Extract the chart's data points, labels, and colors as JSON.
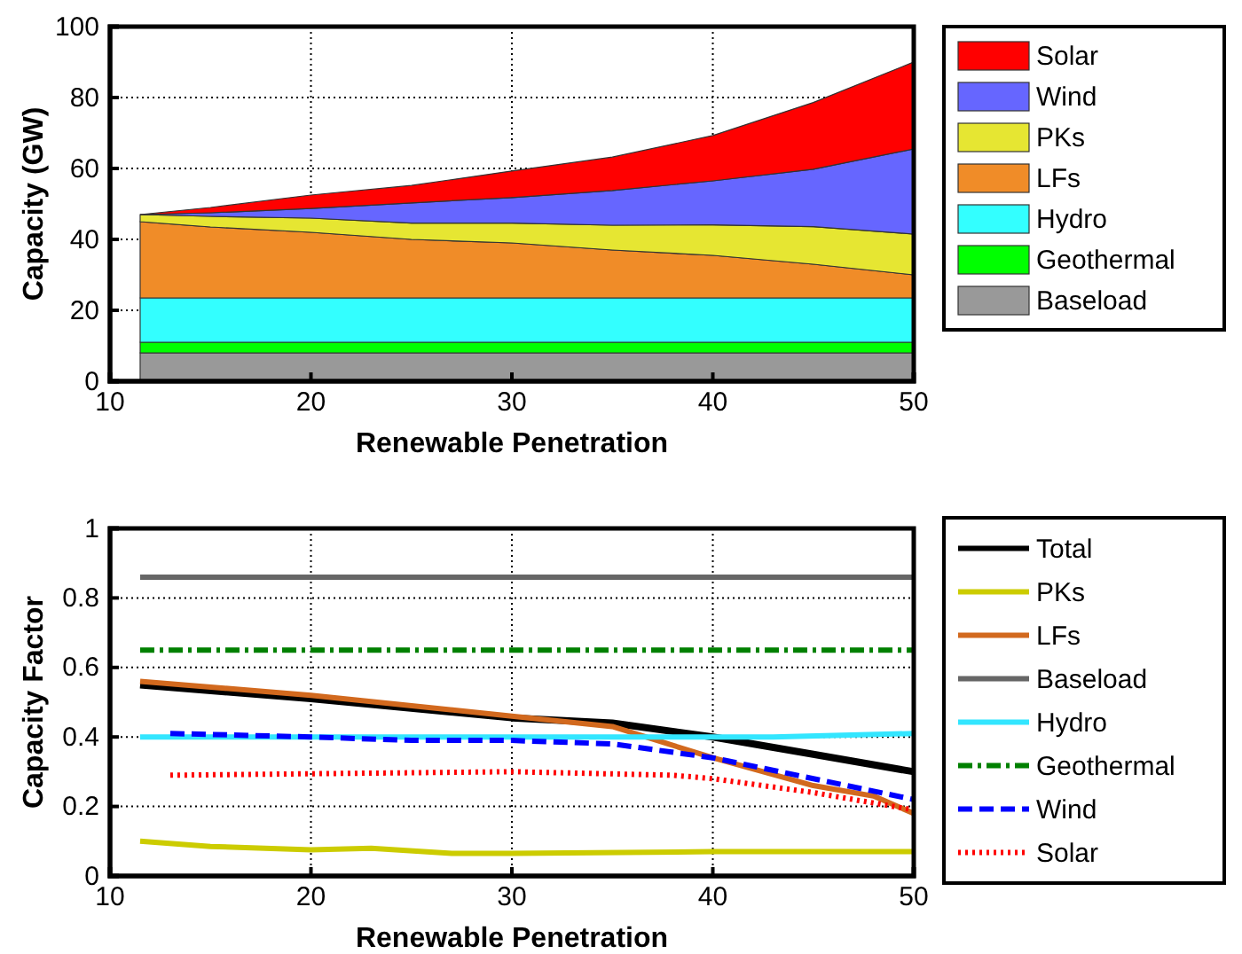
{
  "chart_data": [
    {
      "type": "area",
      "stacked": true,
      "xlabel": "Renewable Penetration",
      "ylabel": "Capacity (GW)",
      "x": [
        11.5,
        15,
        20,
        25,
        30,
        35,
        40,
        45,
        50
      ],
      "xlim": [
        10,
        50
      ],
      "xticks": [
        10,
        20,
        30,
        40,
        50
      ],
      "ylim": [
        0,
        100
      ],
      "yticks": [
        0,
        20,
        40,
        60,
        80,
        100
      ],
      "grid": true,
      "legend": "right",
      "series": [
        {
          "name": "Baseload",
          "color": "#999999",
          "values": [
            8,
            8,
            8,
            8,
            8,
            8,
            8,
            8,
            8
          ]
        },
        {
          "name": "Geothermal",
          "color": "#00ff00",
          "values": [
            3,
            3,
            3,
            3,
            3,
            3,
            3,
            3,
            3
          ]
        },
        {
          "name": "Hydro",
          "color": "#33ffff",
          "values": [
            12.5,
            12.5,
            12.5,
            12.5,
            12.5,
            12.5,
            12.5,
            12.5,
            12.5
          ]
        },
        {
          "name": "LFs",
          "color": "#f08c28",
          "values": [
            21.5,
            20,
            18.5,
            16.5,
            15.5,
            13.5,
            12,
            9.5,
            6.5
          ]
        },
        {
          "name": "PKs",
          "color": "#e6e632",
          "values": [
            2,
            3,
            4,
            4.6,
            5.6,
            7,
            8.6,
            10.6,
            11.5
          ]
        },
        {
          "name": "Wind",
          "color": "#6666ff",
          "values": [
            0,
            1,
            2.7,
            5.7,
            7.2,
            9.8,
            12.4,
            16.2,
            24
          ]
        },
        {
          "name": "Solar",
          "color": "#ff0000",
          "values": [
            0,
            1.5,
            3.8,
            4.9,
            7.5,
            9.4,
            12.8,
            18.8,
            24.5
          ]
        }
      ]
    },
    {
      "type": "line",
      "xlabel": "Renewable Penetration",
      "ylabel": "Capacity Factor",
      "xlim": [
        10,
        50
      ],
      "xticks": [
        10,
        20,
        30,
        40,
        50
      ],
      "ylim": [
        0,
        1
      ],
      "yticks": [
        0,
        0.2,
        0.4,
        0.6,
        0.8,
        1
      ],
      "grid": true,
      "legend": "right",
      "series": [
        {
          "name": "Total",
          "color": "#000000",
          "line_style": "solid",
          "x": [
            11.5,
            20,
            30,
            35,
            40,
            45,
            50
          ],
          "values": [
            0.55,
            0.51,
            0.455,
            0.44,
            0.4,
            0.35,
            0.3
          ]
        },
        {
          "name": "PKs",
          "color": "#cccc00",
          "line_style": "solid",
          "x": [
            11.5,
            15,
            20,
            23,
            27,
            30,
            40,
            50
          ],
          "values": [
            0.1,
            0.085,
            0.075,
            0.08,
            0.065,
            0.065,
            0.07,
            0.07
          ]
        },
        {
          "name": "LFs",
          "color": "#d2691e",
          "line_style": "solid",
          "x": [
            11.5,
            20,
            30,
            35,
            40,
            45,
            48,
            50
          ],
          "values": [
            0.56,
            0.52,
            0.46,
            0.43,
            0.34,
            0.26,
            0.23,
            0.18
          ]
        },
        {
          "name": "Baseload",
          "color": "#666666",
          "line_style": "solid",
          "x": [
            11.5,
            50
          ],
          "values": [
            0.86,
            0.86
          ]
        },
        {
          "name": "Hydro",
          "color": "#33e6ff",
          "line_style": "solid",
          "x": [
            11.5,
            43,
            50
          ],
          "values": [
            0.4,
            0.4,
            0.41
          ]
        },
        {
          "name": "Geothermal",
          "color": "#008000",
          "line_style": "dashdot",
          "x": [
            11.5,
            50
          ],
          "values": [
            0.65,
            0.65
          ]
        },
        {
          "name": "Wind",
          "color": "#0000ff",
          "line_style": "dashed",
          "x": [
            13,
            20,
            25,
            30,
            35,
            40,
            45,
            50
          ],
          "values": [
            0.41,
            0.4,
            0.39,
            0.39,
            0.38,
            0.34,
            0.28,
            0.22
          ]
        },
        {
          "name": "Solar",
          "color": "#ff0000",
          "line_style": "dotted",
          "x": [
            13,
            30,
            38,
            40,
            45,
            50
          ],
          "values": [
            0.29,
            0.3,
            0.29,
            0.28,
            0.24,
            0.19
          ]
        }
      ]
    }
  ]
}
